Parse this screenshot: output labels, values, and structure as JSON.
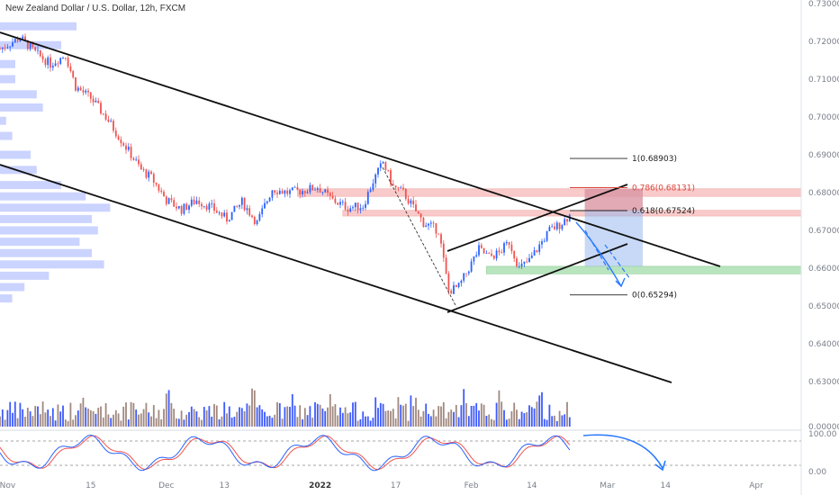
{
  "title": "New Zealand Dollar / U.S. Dollar, 12h, FXCM",
  "colors": {
    "up": "#2962ff",
    "down": "#ef5350",
    "vol_up": "#3d5afe",
    "vol_down": "#a1887f",
    "profile": "#8c9eff",
    "fib_zone": "#f28b8b",
    "target_zone": "#7fcf8a",
    "projection_box": "#90b4ee",
    "stoch_k": "#2962ff",
    "stoch_d": "#ef5350",
    "arrow": "#2979ff"
  },
  "chart_data": {
    "type": "candlestick",
    "symbol": "New Zealand Dollar / U.S. Dollar",
    "timeframe": "12h",
    "source": "FXCM",
    "ylim": [
      0.63,
      0.73
    ],
    "y_ticks": [
      "0.73000",
      "0.72000",
      "0.71000",
      "0.70000",
      "0.69000",
      "0.68000",
      "0.67000",
      "0.66000",
      "0.65000",
      "0.64000",
      "0.63000"
    ],
    "x_ticks": [
      {
        "label": "Nov",
        "i": 3
      },
      {
        "label": "15",
        "i": 36
      },
      {
        "label": "Dec",
        "i": 66
      },
      {
        "label": "13",
        "i": 89
      },
      {
        "label": "2022",
        "i": 127,
        "bold": true
      },
      {
        "label": "17",
        "i": 157
      },
      {
        "label": "Feb",
        "i": 187
      },
      {
        "label": "14",
        "i": 211
      },
      {
        "label": "Mar",
        "i": 241
      },
      {
        "label": "14",
        "i": 264
      },
      {
        "label": "Apr",
        "i": 300
      }
    ],
    "price_path": [
      [
        0,
        0.718
      ],
      [
        8,
        0.721
      ],
      [
        14,
        0.717
      ],
      [
        20,
        0.714
      ],
      [
        26,
        0.7165
      ],
      [
        30,
        0.708
      ],
      [
        36,
        0.705
      ],
      [
        42,
        0.7
      ],
      [
        50,
        0.692
      ],
      [
        56,
        0.686
      ],
      [
        60,
        0.684
      ],
      [
        66,
        0.678
      ],
      [
        72,
        0.6755
      ],
      [
        78,
        0.678
      ],
      [
        84,
        0.676
      ],
      [
        90,
        0.673
      ],
      [
        96,
        0.6775
      ],
      [
        102,
        0.672
      ],
      [
        108,
        0.681
      ],
      [
        114,
        0.68
      ],
      [
        120,
        0.6805
      ],
      [
        126,
        0.6815
      ],
      [
        132,
        0.678
      ],
      [
        138,
        0.676
      ],
      [
        144,
        0.6765
      ],
      [
        148,
        0.683
      ],
      [
        152,
        0.688
      ],
      [
        156,
        0.6815
      ],
      [
        160,
        0.68
      ],
      [
        164,
        0.676
      ],
      [
        168,
        0.672
      ],
      [
        174,
        0.67
      ],
      [
        178,
        0.654
      ],
      [
        182,
        0.655
      ],
      [
        186,
        0.66
      ],
      [
        190,
        0.665
      ],
      [
        194,
        0.663
      ],
      [
        198,
        0.664
      ],
      [
        202,
        0.667
      ],
      [
        206,
        0.66
      ],
      [
        210,
        0.662
      ],
      [
        214,
        0.666
      ],
      [
        218,
        0.67
      ],
      [
        222,
        0.6715
      ],
      [
        226,
        0.674
      ]
    ],
    "volume_profile": [
      {
        "price": 0.724,
        "size": 0.25
      },
      {
        "price": 0.719,
        "size": 0.2
      },
      {
        "price": 0.714,
        "size": 0.05
      },
      {
        "price": 0.71,
        "size": 0.05
      },
      {
        "price": 0.706,
        "size": 0.12
      },
      {
        "price": 0.7025,
        "size": 0.14
      },
      {
        "price": 0.699,
        "size": 0.02
      },
      {
        "price": 0.695,
        "size": 0.04
      },
      {
        "price": 0.69,
        "size": 0.1
      },
      {
        "price": 0.686,
        "size": 0.12
      },
      {
        "price": 0.682,
        "size": 0.2
      },
      {
        "price": 0.679,
        "size": 0.28
      },
      {
        "price": 0.676,
        "size": 0.36
      },
      {
        "price": 0.673,
        "size": 0.3
      },
      {
        "price": 0.67,
        "size": 0.32
      },
      {
        "price": 0.667,
        "size": 0.26
      },
      {
        "price": 0.664,
        "size": 0.3
      },
      {
        "price": 0.661,
        "size": 0.34
      },
      {
        "price": 0.658,
        "size": 0.16
      },
      {
        "price": 0.655,
        "size": 0.08
      },
      {
        "price": 0.652,
        "size": 0.04
      }
    ],
    "fib_levels": [
      {
        "label": "1(0.68903)",
        "value": 0.68903,
        "color": "dark"
      },
      {
        "label": "0.786(0.68131)",
        "value": 0.68131,
        "color": "red"
      },
      {
        "label": "0.618(0.67524)",
        "value": 0.67524,
        "color": "dark"
      },
      {
        "label": "0(0.65294)",
        "value": 0.65294,
        "color": "dark"
      }
    ],
    "fib_zone": [
      0.679,
      0.681
    ],
    "fib_zone2": [
      0.6738,
      0.6753
    ],
    "target_zone": [
      0.6585,
      0.6605
    ],
    "projection_box": {
      "i0": 232,
      "i1": 255,
      "y0": 0.6605,
      "y1": 0.681
    },
    "stoch_ticks": [
      "100.00",
      "0.00"
    ]
  }
}
